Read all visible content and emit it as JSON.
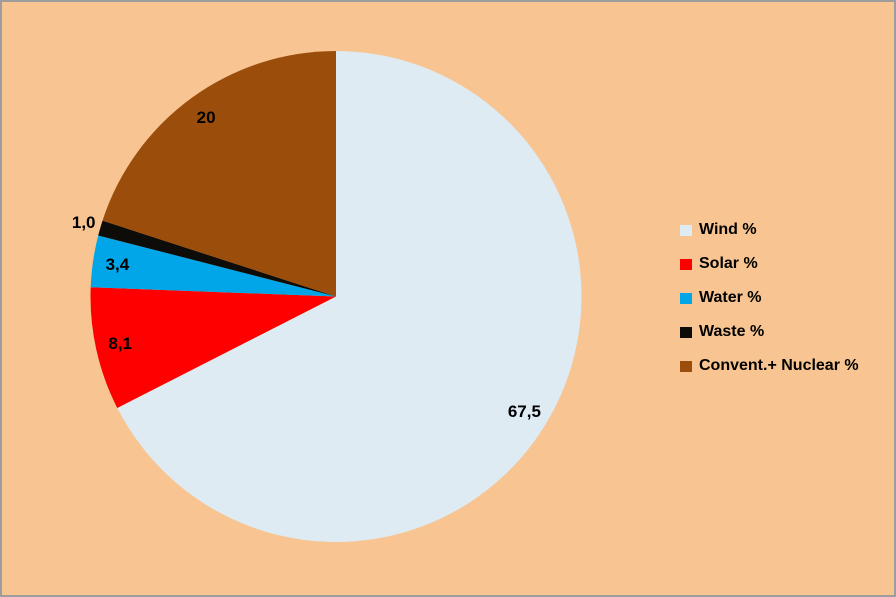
{
  "chart_data": {
    "type": "pie",
    "title": "",
    "categories": [
      "Wind %",
      "Solar %",
      "Water %",
      "Waste %",
      "Convent.+ Nuclear %"
    ],
    "values": [
      67.5,
      8.1,
      3.4,
      1.0,
      20
    ],
    "data_labels": [
      "67,5",
      "8,1",
      "3,4",
      "1,0",
      "20"
    ],
    "colors": [
      "#DEEBF3",
      "#FE0000",
      "#00A6E8",
      "#0D0C08",
      "#9B4D0C"
    ],
    "unit": "%",
    "start_angle_deg": 0,
    "direction": "clockwise",
    "legend_position": "right",
    "background_color": "#F8C491",
    "frame_border_color": "#9D9D9D",
    "label_color": "#000000"
  }
}
